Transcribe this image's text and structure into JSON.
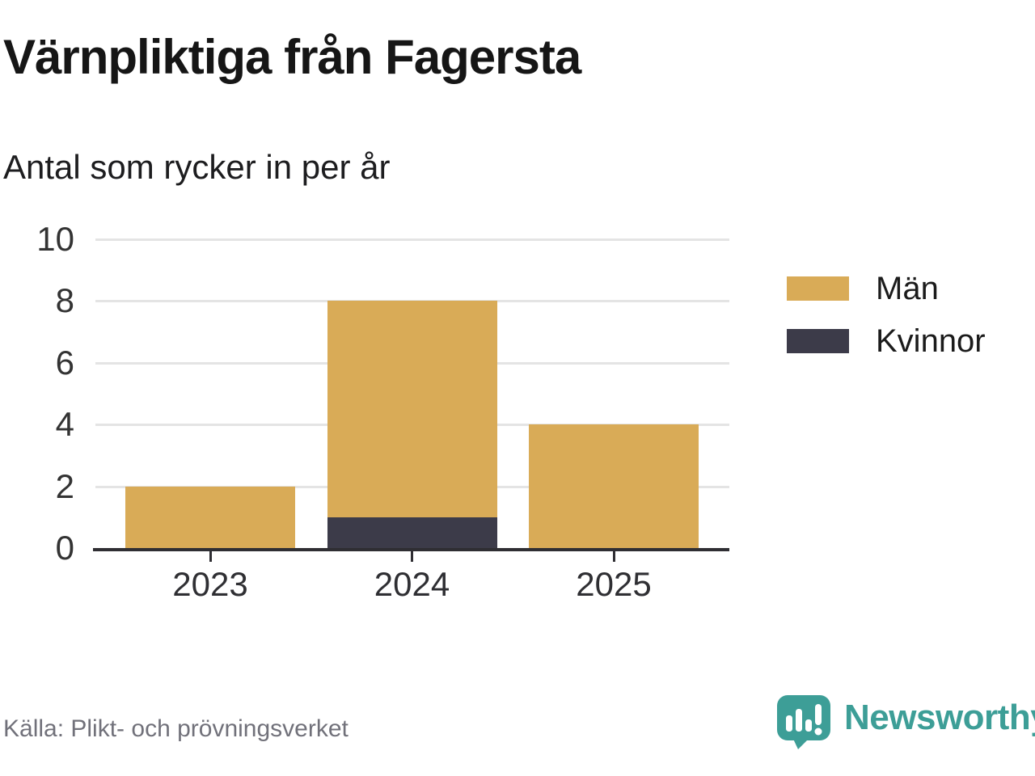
{
  "title": "Värnpliktiga från Fagersta",
  "subtitle": "Antal som rycker in per år",
  "source": "Källa: Plikt- och prövningsverket",
  "brand": {
    "name": "Newsworthy",
    "color": "#3d9e97"
  },
  "colors": {
    "men": "#d9ab57",
    "women": "#3c3b49",
    "axis": "#2f2e33",
    "grid": "#e4e4e4",
    "title_text": "#161616",
    "tick_text": "#333333",
    "source_text": "#71717a"
  },
  "chart_data": {
    "type": "bar",
    "stacked": true,
    "title": "Värnpliktiga från Fagersta",
    "subtitle": "Antal som rycker in per år",
    "categories": [
      "2023",
      "2024",
      "2025"
    ],
    "series": [
      {
        "name": "Män",
        "values": [
          2,
          7,
          4
        ],
        "color": "#d9ab57"
      },
      {
        "name": "Kvinnor",
        "values": [
          0,
          1,
          0
        ],
        "color": "#3c3b49"
      }
    ],
    "stack_totals": [
      2,
      8,
      4
    ],
    "xlabel": "",
    "ylabel": "",
    "ylim": [
      0,
      10
    ],
    "yticks": [
      0,
      2,
      4,
      6,
      8,
      10
    ],
    "grid": true,
    "legend_position": "right"
  }
}
